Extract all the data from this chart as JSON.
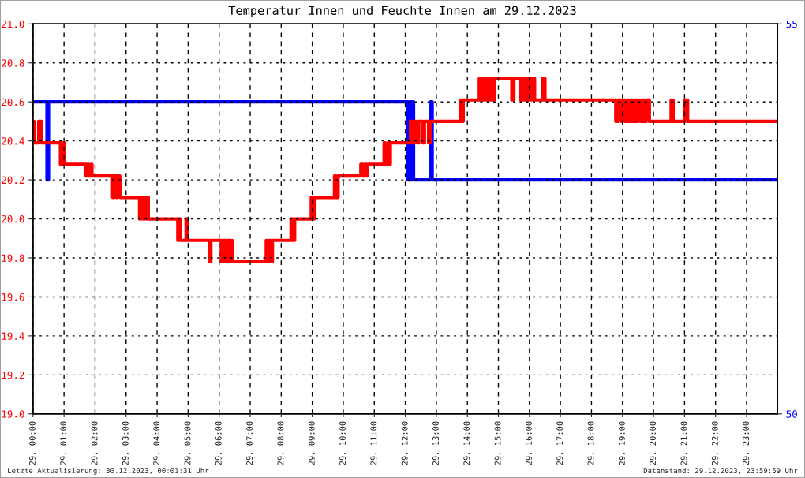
{
  "chart_data": {
    "type": "step",
    "title": "Temperatur Innen und Feuchte Innen am 29.12.2023",
    "xlim": [
      "2023-12-29T00:00",
      "2023-12-30T00:00"
    ],
    "xticks": [
      {
        "value": "2023-12-29T00:00",
        "label": "29. 00:00"
      },
      {
        "value": "2023-12-29T01:00",
        "label": "29. 01:00"
      },
      {
        "value": "2023-12-29T02:00",
        "label": "29. 02:00"
      },
      {
        "value": "2023-12-29T03:00",
        "label": "29. 03:00"
      },
      {
        "value": "2023-12-29T04:00",
        "label": "29. 04:00"
      },
      {
        "value": "2023-12-29T05:00",
        "label": "29. 05:00"
      },
      {
        "value": "2023-12-29T06:00",
        "label": "29. 06:00"
      },
      {
        "value": "2023-12-29T07:00",
        "label": "29. 07:00"
      },
      {
        "value": "2023-12-29T08:00",
        "label": "29. 08:00"
      },
      {
        "value": "2023-12-29T09:00",
        "label": "29. 09:00"
      },
      {
        "value": "2023-12-29T10:00",
        "label": "29. 10:00"
      },
      {
        "value": "2023-12-29T11:00",
        "label": "29. 11:00"
      },
      {
        "value": "2023-12-29T12:00",
        "label": "29. 12:00"
      },
      {
        "value": "2023-12-29T13:00",
        "label": "29. 13:00"
      },
      {
        "value": "2023-12-29T14:00",
        "label": "29. 14:00"
      },
      {
        "value": "2023-12-29T15:00",
        "label": "29. 15:00"
      },
      {
        "value": "2023-12-29T16:00",
        "label": "29. 16:00"
      },
      {
        "value": "2023-12-29T17:00",
        "label": "29. 17:00"
      },
      {
        "value": "2023-12-29T18:00",
        "label": "29. 18:00"
      },
      {
        "value": "2023-12-29T19:00",
        "label": "29. 19:00"
      },
      {
        "value": "2023-12-29T20:00",
        "label": "29. 20:00"
      },
      {
        "value": "2023-12-29T21:00",
        "label": "29. 21:00"
      },
      {
        "value": "2023-12-29T22:00",
        "label": "29. 22:00"
      },
      {
        "value": "2023-12-29T23:00",
        "label": "29. 23:00"
      }
    ],
    "ylim": [
      19,
      21
    ],
    "yticks": [
      {
        "value": 19,
        "label": "19.0"
      },
      19.2,
      19.4,
      19.6,
      19.8,
      {
        "value": 20,
        "label": "20.0"
      },
      20.2,
      20.4,
      20.6,
      20.8,
      {
        "value": 21,
        "label": "21.0"
      }
    ],
    "y2lim": [
      50,
      55
    ],
    "y2ticks": [
      50,
      55
    ],
    "grid": true,
    "series": [
      {
        "color": "#ff0000",
        "x": [
          "2023-12-29T00:00",
          "2023-12-29T00:02",
          "2023-12-29T00:11",
          "2023-12-29T00:16",
          "2023-12-29T00:53",
          "2023-12-29T00:57",
          "2023-12-29T01:00",
          "2023-12-29T01:41",
          "2023-12-29T01:44",
          "2023-12-29T01:48",
          "2023-12-29T01:52",
          "2023-12-29T01:54",
          "2023-12-29T02:34",
          "2023-12-29T02:37",
          "2023-12-29T02:41",
          "2023-12-29T02:44",
          "2023-12-29T02:48",
          "2023-12-29T03:26",
          "2023-12-29T03:29",
          "2023-12-29T03:33",
          "2023-12-29T03:36",
          "2023-12-29T03:40",
          "2023-12-29T03:42",
          "2023-12-29T03:43",
          "2023-12-29T04:40",
          "2023-12-29T04:42",
          "2023-12-29T04:45",
          "2023-12-29T04:56",
          "2023-12-29T04:59",
          "2023-12-29T05:41",
          "2023-12-29T05:44",
          "2023-12-29T06:04",
          "2023-12-29T06:07",
          "2023-12-29T06:12",
          "2023-12-29T06:16",
          "2023-12-29T06:20",
          "2023-12-29T06:23",
          "2023-12-29T06:25",
          "2023-12-29T07:31",
          "2023-12-29T07:34",
          "2023-12-29T07:37",
          "2023-12-29T07:40",
          "2023-12-29T07:43",
          "2023-12-29T08:19",
          "2023-12-29T08:23",
          "2023-12-29T08:26",
          "2023-12-29T08:58",
          "2023-12-29T09:01",
          "2023-12-29T09:04",
          "2023-12-29T09:43",
          "2023-12-29T09:46",
          "2023-12-29T09:50",
          "2023-12-29T10:34",
          "2023-12-29T10:38",
          "2023-12-29T10:42",
          "2023-12-29T10:45",
          "2023-12-29T10:47",
          "2023-12-29T11:19",
          "2023-12-29T11:21",
          "2023-12-29T11:27",
          "2023-12-29T11:29",
          "2023-12-29T11:31",
          "2023-12-29T12:10",
          "2023-12-29T12:13",
          "2023-12-29T12:17",
          "2023-12-29T12:23",
          "2023-12-29T12:26",
          "2023-12-29T12:34",
          "2023-12-29T12:37",
          "2023-12-29T12:45",
          "2023-12-29T12:49",
          "2023-12-29T13:46",
          "2023-12-29T13:49",
          "2023-12-29T13:52",
          "2023-12-29T14:23",
          "2023-12-29T14:26",
          "2023-12-29T14:28",
          "2023-12-29T14:31",
          "2023-12-29T14:34",
          "2023-12-29T14:37",
          "2023-12-29T14:40",
          "2023-12-29T14:43",
          "2023-12-29T14:46",
          "2023-12-29T14:49",
          "2023-12-29T14:52",
          "2023-12-29T15:26",
          "2023-12-29T15:30",
          "2023-12-29T15:42",
          "2023-12-29T15:46",
          "2023-12-29T15:49",
          "2023-12-29T15:53",
          "2023-12-29T15:56",
          "2023-12-29T16:00",
          "2023-12-29T16:04",
          "2023-12-29T16:07",
          "2023-12-29T16:10",
          "2023-12-29T16:26",
          "2023-12-29T16:30",
          "2023-12-29T18:47",
          "2023-12-29T18:51",
          "2023-12-29T18:57",
          "2023-12-29T19:00",
          "2023-12-29T19:05",
          "2023-12-29T19:08",
          "2023-12-29T19:12",
          "2023-12-29T19:15",
          "2023-12-29T19:19",
          "2023-12-29T19:23",
          "2023-12-29T19:27",
          "2023-12-29T19:30",
          "2023-12-29T19:35",
          "2023-12-29T19:38",
          "2023-12-29T19:42",
          "2023-12-29T19:46",
          "2023-12-29T19:52",
          "2023-12-29T20:34",
          "2023-12-29T20:38",
          "2023-12-29T21:01",
          "2023-12-29T21:06",
          "2023-12-30T00:00"
        ],
        "values": [
          20.5,
          20.39,
          20.5,
          20.39,
          20.28,
          20.39,
          20.28,
          20.22,
          20.28,
          20.22,
          20.28,
          20.22,
          20.11,
          20.22,
          20.11,
          20.22,
          20.11,
          20.0,
          20.11,
          20.0,
          20.11,
          20.0,
          20.11,
          20.0,
          19.89,
          20.0,
          19.89,
          20.0,
          19.89,
          19.78,
          19.89,
          19.78,
          19.89,
          19.78,
          19.89,
          19.78,
          19.89,
          19.78,
          19.89,
          19.78,
          19.89,
          19.78,
          19.89,
          20.0,
          19.89,
          20.0,
          20.11,
          20.0,
          20.11,
          20.22,
          20.11,
          20.22,
          20.28,
          20.22,
          20.28,
          20.22,
          20.28,
          20.39,
          20.28,
          20.39,
          20.28,
          20.39,
          20.5,
          20.39,
          20.5,
          20.39,
          20.5,
          20.39,
          20.5,
          20.39,
          20.5,
          20.61,
          20.5,
          20.61,
          20.72,
          20.61,
          20.72,
          20.61,
          20.72,
          20.61,
          20.72,
          20.61,
          20.72,
          20.61,
          20.72,
          20.61,
          20.72,
          20.61,
          20.72,
          20.61,
          20.72,
          20.61,
          20.72,
          20.61,
          20.72,
          20.61,
          20.72,
          20.61,
          20.5,
          20.61,
          20.5,
          20.61,
          20.5,
          20.61,
          20.5,
          20.61,
          20.5,
          20.61,
          20.5,
          20.61,
          20.5,
          20.61,
          20.5,
          20.61,
          20.5,
          20.61,
          20.5,
          20.61,
          20.5,
          20.5
        ]
      },
      {
        "color": "#0000ff",
        "axis": "y2",
        "x": [
          "2023-12-29T00:00",
          "2023-12-29T00:27",
          "2023-12-29T00:30",
          "2023-12-29T12:05",
          "2023-12-29T12:08",
          "2023-12-29T12:10",
          "2023-12-29T12:13",
          "2023-12-29T12:16",
          "2023-12-29T12:49",
          "2023-12-29T12:52",
          "2023-12-30T00:00"
        ],
        "values": [
          54,
          53,
          54,
          53,
          54,
          53,
          54,
          53,
          54,
          53,
          53
        ]
      }
    ],
    "annotations": [
      "Letzte Aktualisierung: 30.12.2023, 00:01:31 Uhr",
      "Datenstand: 29.12.2023, 23:59:59 Uhr"
    ]
  }
}
